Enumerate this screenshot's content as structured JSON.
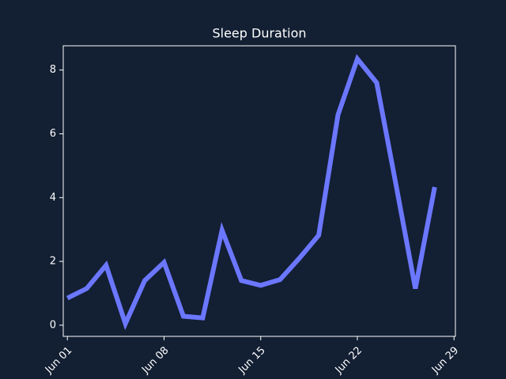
{
  "chart_data": {
    "type": "line",
    "title": "Sleep Duration",
    "x": [
      1,
      2.4,
      3.8,
      5.2,
      6.6,
      8,
      9.4,
      10.8,
      12.2,
      13.6,
      15,
      16.4,
      17.8,
      19.2,
      20.6,
      22,
      23.4,
      24.8,
      26.2,
      27.6
    ],
    "series": [
      {
        "color": "#6b77ff",
        "values": [
          0.85,
          1.15,
          1.88,
          0.05,
          1.4,
          1.97,
          0.28,
          0.23,
          2.98,
          1.4,
          1.25,
          1.43,
          2.1,
          2.82,
          6.6,
          8.35,
          7.6,
          4.4,
          1.15,
          4.33
        ]
      }
    ],
    "xlim": [
      0.7,
      29.1
    ],
    "xticks": [
      {
        "value": 1,
        "label": "Jun 01"
      },
      {
        "value": 8,
        "label": "Jun 08"
      },
      {
        "value": 15,
        "label": "Jun 15"
      },
      {
        "value": 22,
        "label": "Jun 22"
      },
      {
        "value": 29,
        "label": "Jun 29"
      }
    ],
    "ylim": [
      -0.35,
      8.76
    ],
    "yticks": [
      0,
      2,
      4,
      6,
      8
    ]
  }
}
